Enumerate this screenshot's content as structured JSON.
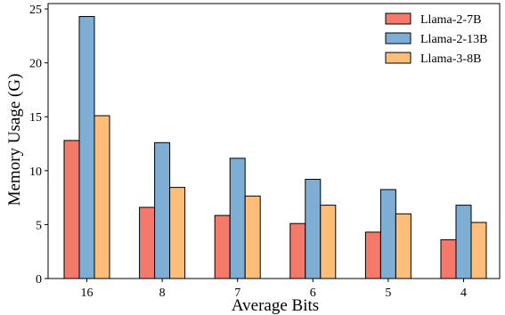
{
  "chart_data": {
    "type": "bar",
    "xlabel": "Average Bits",
    "ylabel": "Memory Usage (G)",
    "categories": [
      "16",
      "8",
      "7",
      "6",
      "5",
      "4"
    ],
    "ylim": [
      0,
      25.5
    ],
    "yticks": [
      0,
      5,
      10,
      15,
      20,
      25
    ],
    "legend_position": "top-right",
    "grid": false,
    "series": [
      {
        "name": "Llama-2-7B",
        "color": "#f4796b",
        "values": [
          12.8,
          6.6,
          5.85,
          5.1,
          4.3,
          3.6
        ]
      },
      {
        "name": "Llama-2-13B",
        "color": "#7eaed3",
        "values": [
          24.3,
          12.6,
          11.15,
          9.2,
          8.25,
          6.8
        ]
      },
      {
        "name": "Llama-3-8B",
        "color": "#fdbe7a",
        "values": [
          15.1,
          8.45,
          7.65,
          6.8,
          6.0,
          5.2
        ]
      }
    ]
  }
}
